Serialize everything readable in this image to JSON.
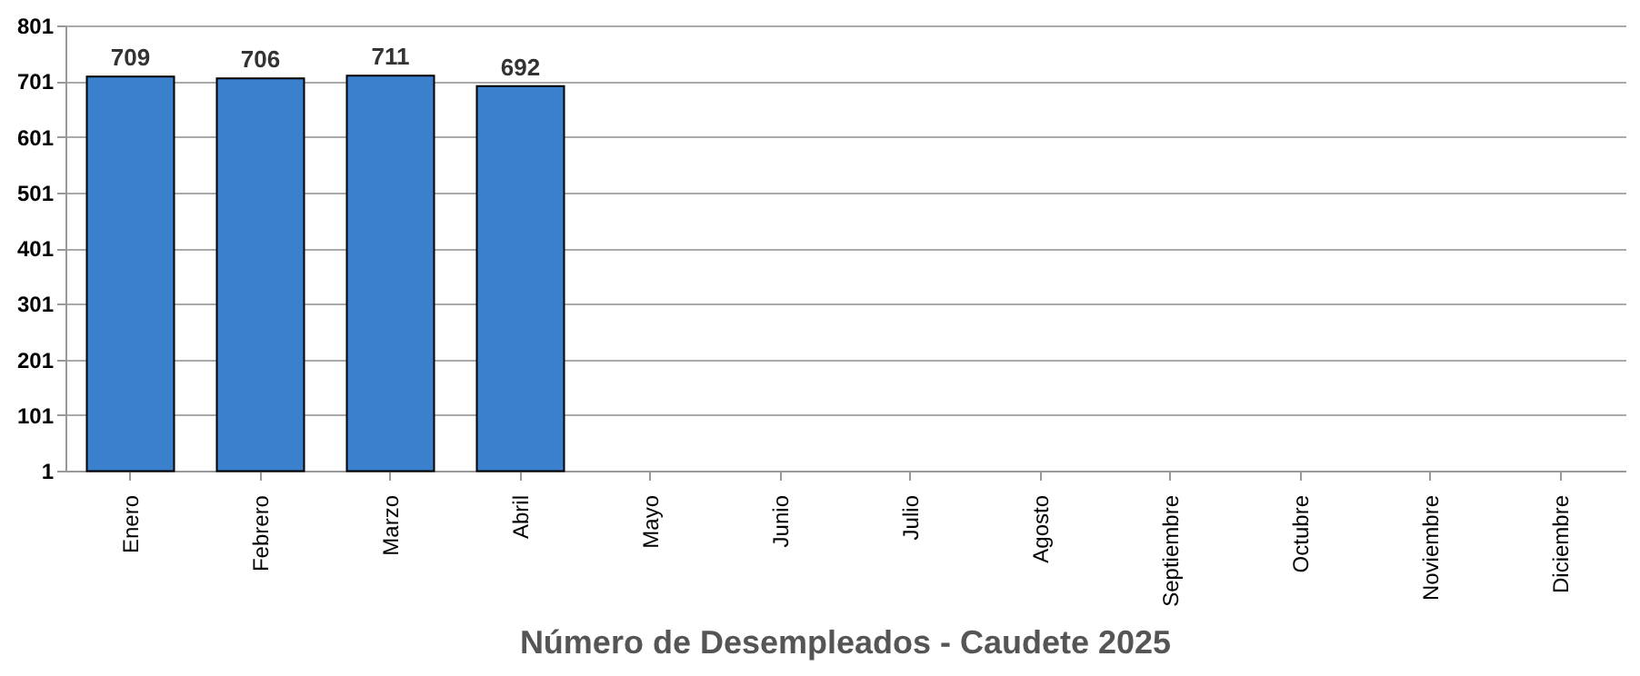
{
  "chart_data": {
    "type": "bar",
    "title": "Número de Desempleados - Caudete 2025",
    "categories": [
      "Enero",
      "Febrero",
      "Marzo",
      "Abril",
      "Mayo",
      "Junio",
      "Julio",
      "Agosto",
      "Septiembre",
      "Octubre",
      "Noviembre",
      "Diciembre"
    ],
    "values": [
      709,
      706,
      711,
      692,
      null,
      null,
      null,
      null,
      null,
      null,
      null,
      null
    ],
    "color": "#3a80cc",
    "ylim": [
      1,
      801
    ],
    "yticks": [
      1,
      101,
      201,
      301,
      401,
      501,
      601,
      701,
      801
    ],
    "grid": "y",
    "data_labels": true,
    "legend": false
  }
}
